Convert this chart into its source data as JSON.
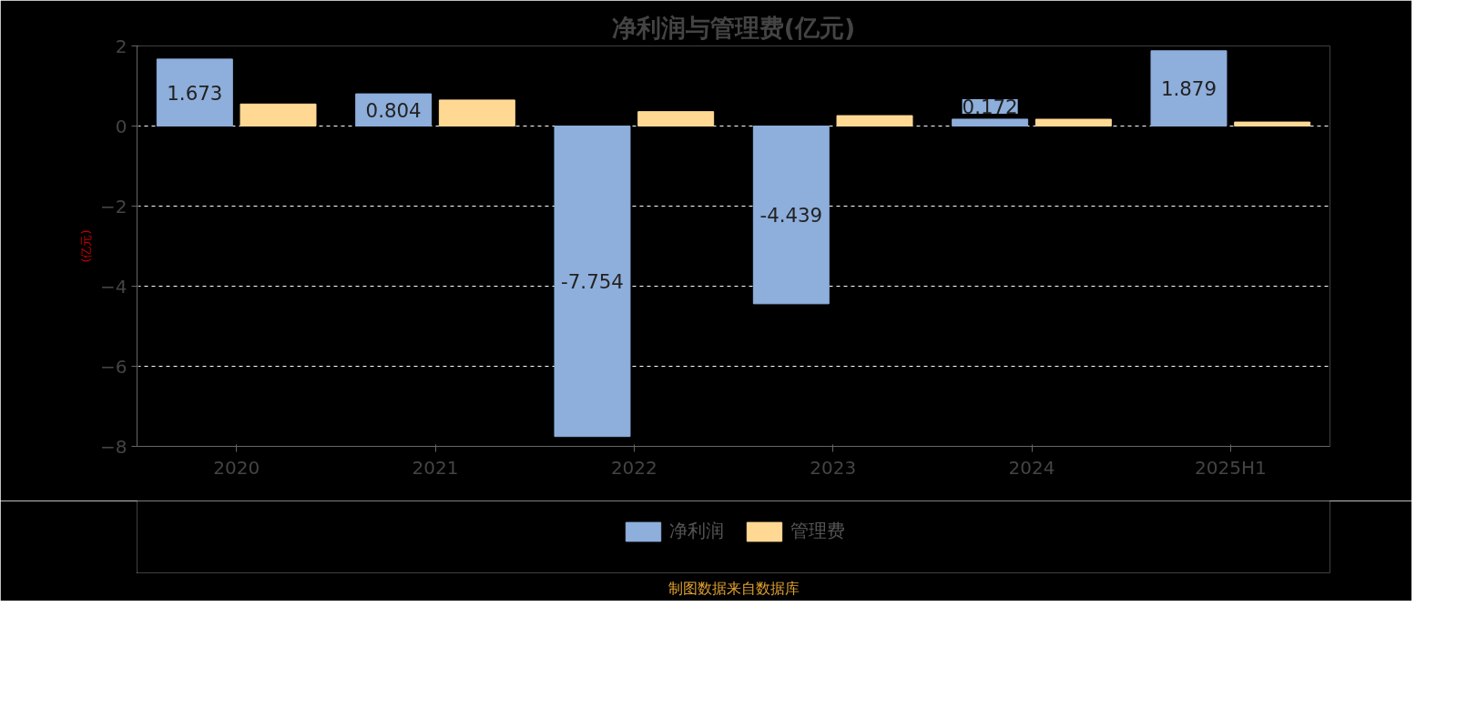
{
  "chart_data": {
    "type": "bar",
    "title": "净利润与管理费(亿元)",
    "ylabel": "(亿元)",
    "categories": [
      "2020",
      "2021",
      "2022",
      "2023",
      "2024",
      "2025H1"
    ],
    "series": [
      {
        "name": "净利润",
        "color": "#8eaedb",
        "values": [
          1.673,
          0.804,
          -7.754,
          -4.439,
          0.172,
          1.879
        ],
        "value_labels": [
          "1.673",
          "0.804",
          "-7.754",
          "-4.439",
          "0.172",
          "1.879"
        ]
      },
      {
        "name": "管理费",
        "color": "#ffd994",
        "values": [
          0.55,
          0.65,
          0.36,
          0.26,
          0.17,
          0.1
        ]
      }
    ],
    "ylim": [
      -8,
      2
    ],
    "yticks": [
      -8,
      -6,
      -4,
      -2,
      0,
      2
    ],
    "grid": "y",
    "legend": "bottom",
    "annotations": [
      "制图数据来自数据库"
    ]
  }
}
